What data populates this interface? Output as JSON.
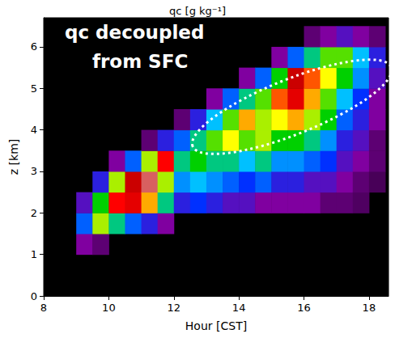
{
  "chart_data": {
    "type": "heatmap",
    "title": "qc [g kg⁻¹]",
    "x_label": "Hour [CST]",
    "y_label": "z [km]",
    "xlim": [
      8,
      18.6
    ],
    "xticks": [
      8,
      10,
      12,
      14,
      16,
      18
    ],
    "ylim": [
      0,
      6.7
    ],
    "yticks": [
      0,
      1,
      2,
      3,
      4,
      5,
      6
    ],
    "annotation": [
      "qc decoupled",
      "from SFC"
    ],
    "color_range": [
      0,
      1
    ],
    "x_edges": [
      9.0,
      9.5,
      10.0,
      10.5,
      11.0,
      11.5,
      12.0,
      12.5,
      13.0,
      13.5,
      14.0,
      14.5,
      15.0,
      15.5,
      16.0,
      16.5,
      17.0,
      17.5,
      18.0,
      18.5
    ],
    "z_edges": [
      1.0,
      1.5,
      2.0,
      2.5,
      3.0,
      3.5,
      4.0,
      4.5,
      5.0,
      5.5,
      6.0,
      6.5
    ],
    "cells": [
      [
        0.1,
        0.3,
        0.15,
        0,
        0,
        0,
        0,
        0,
        0,
        0,
        0
      ],
      [
        0.05,
        0.6,
        0.5,
        0.2,
        0,
        0,
        0,
        0,
        0,
        0,
        0
      ],
      [
        0,
        0.45,
        0.8,
        0.6,
        0.1,
        0,
        0,
        0,
        0,
        0,
        0
      ],
      [
        0,
        0.3,
        0.85,
        0.9,
        0.3,
        0,
        0,
        0,
        0,
        0,
        0
      ],
      [
        0,
        0.2,
        0.7,
        0.95,
        0.6,
        0.05,
        0,
        0,
        0,
        0,
        0
      ],
      [
        0,
        0.1,
        0.45,
        0.6,
        0.8,
        0.2,
        0,
        0,
        0,
        0,
        0
      ],
      [
        0,
        0,
        0.2,
        0.35,
        0.45,
        0.3,
        0.05,
        0,
        0,
        0,
        0
      ],
      [
        0,
        0,
        0.25,
        0.4,
        0.5,
        0.45,
        0.2,
        0,
        0,
        0,
        0
      ],
      [
        0,
        0,
        0.2,
        0.35,
        0.45,
        0.55,
        0.4,
        0.1,
        0,
        0,
        0
      ],
      [
        0,
        0,
        0.15,
        0.3,
        0.45,
        0.65,
        0.55,
        0.3,
        0,
        0,
        0
      ],
      [
        0,
        0,
        0.15,
        0.25,
        0.4,
        0.55,
        0.7,
        0.45,
        0.1,
        0,
        0
      ],
      [
        0,
        0,
        0.1,
        0.3,
        0.45,
        0.6,
        0.6,
        0.55,
        0.3,
        0,
        0
      ],
      [
        0,
        0,
        0.1,
        0.2,
        0.35,
        0.5,
        0.65,
        0.75,
        0.5,
        0.1,
        0
      ],
      [
        0,
        0,
        0.1,
        0.2,
        0.35,
        0.5,
        0.7,
        0.85,
        0.9,
        0.3,
        0
      ],
      [
        0,
        0,
        0.1,
        0.15,
        0.3,
        0.45,
        0.6,
        0.7,
        0.75,
        0.45,
        0.05
      ],
      [
        0,
        0,
        0.05,
        0.15,
        0.25,
        0.35,
        0.5,
        0.55,
        0.65,
        0.55,
        0.1
      ],
      [
        0,
        0,
        0.05,
        0.1,
        0.15,
        0.2,
        0.3,
        0.4,
        0.5,
        0.55,
        0.15
      ],
      [
        0,
        0,
        0.03,
        0.05,
        0.1,
        0.15,
        0.2,
        0.25,
        0.35,
        0.4,
        0.1
      ],
      [
        0,
        0,
        0,
        0.02,
        0.05,
        0.05,
        0.1,
        0.1,
        0.15,
        0.2,
        0.05
      ]
    ]
  }
}
